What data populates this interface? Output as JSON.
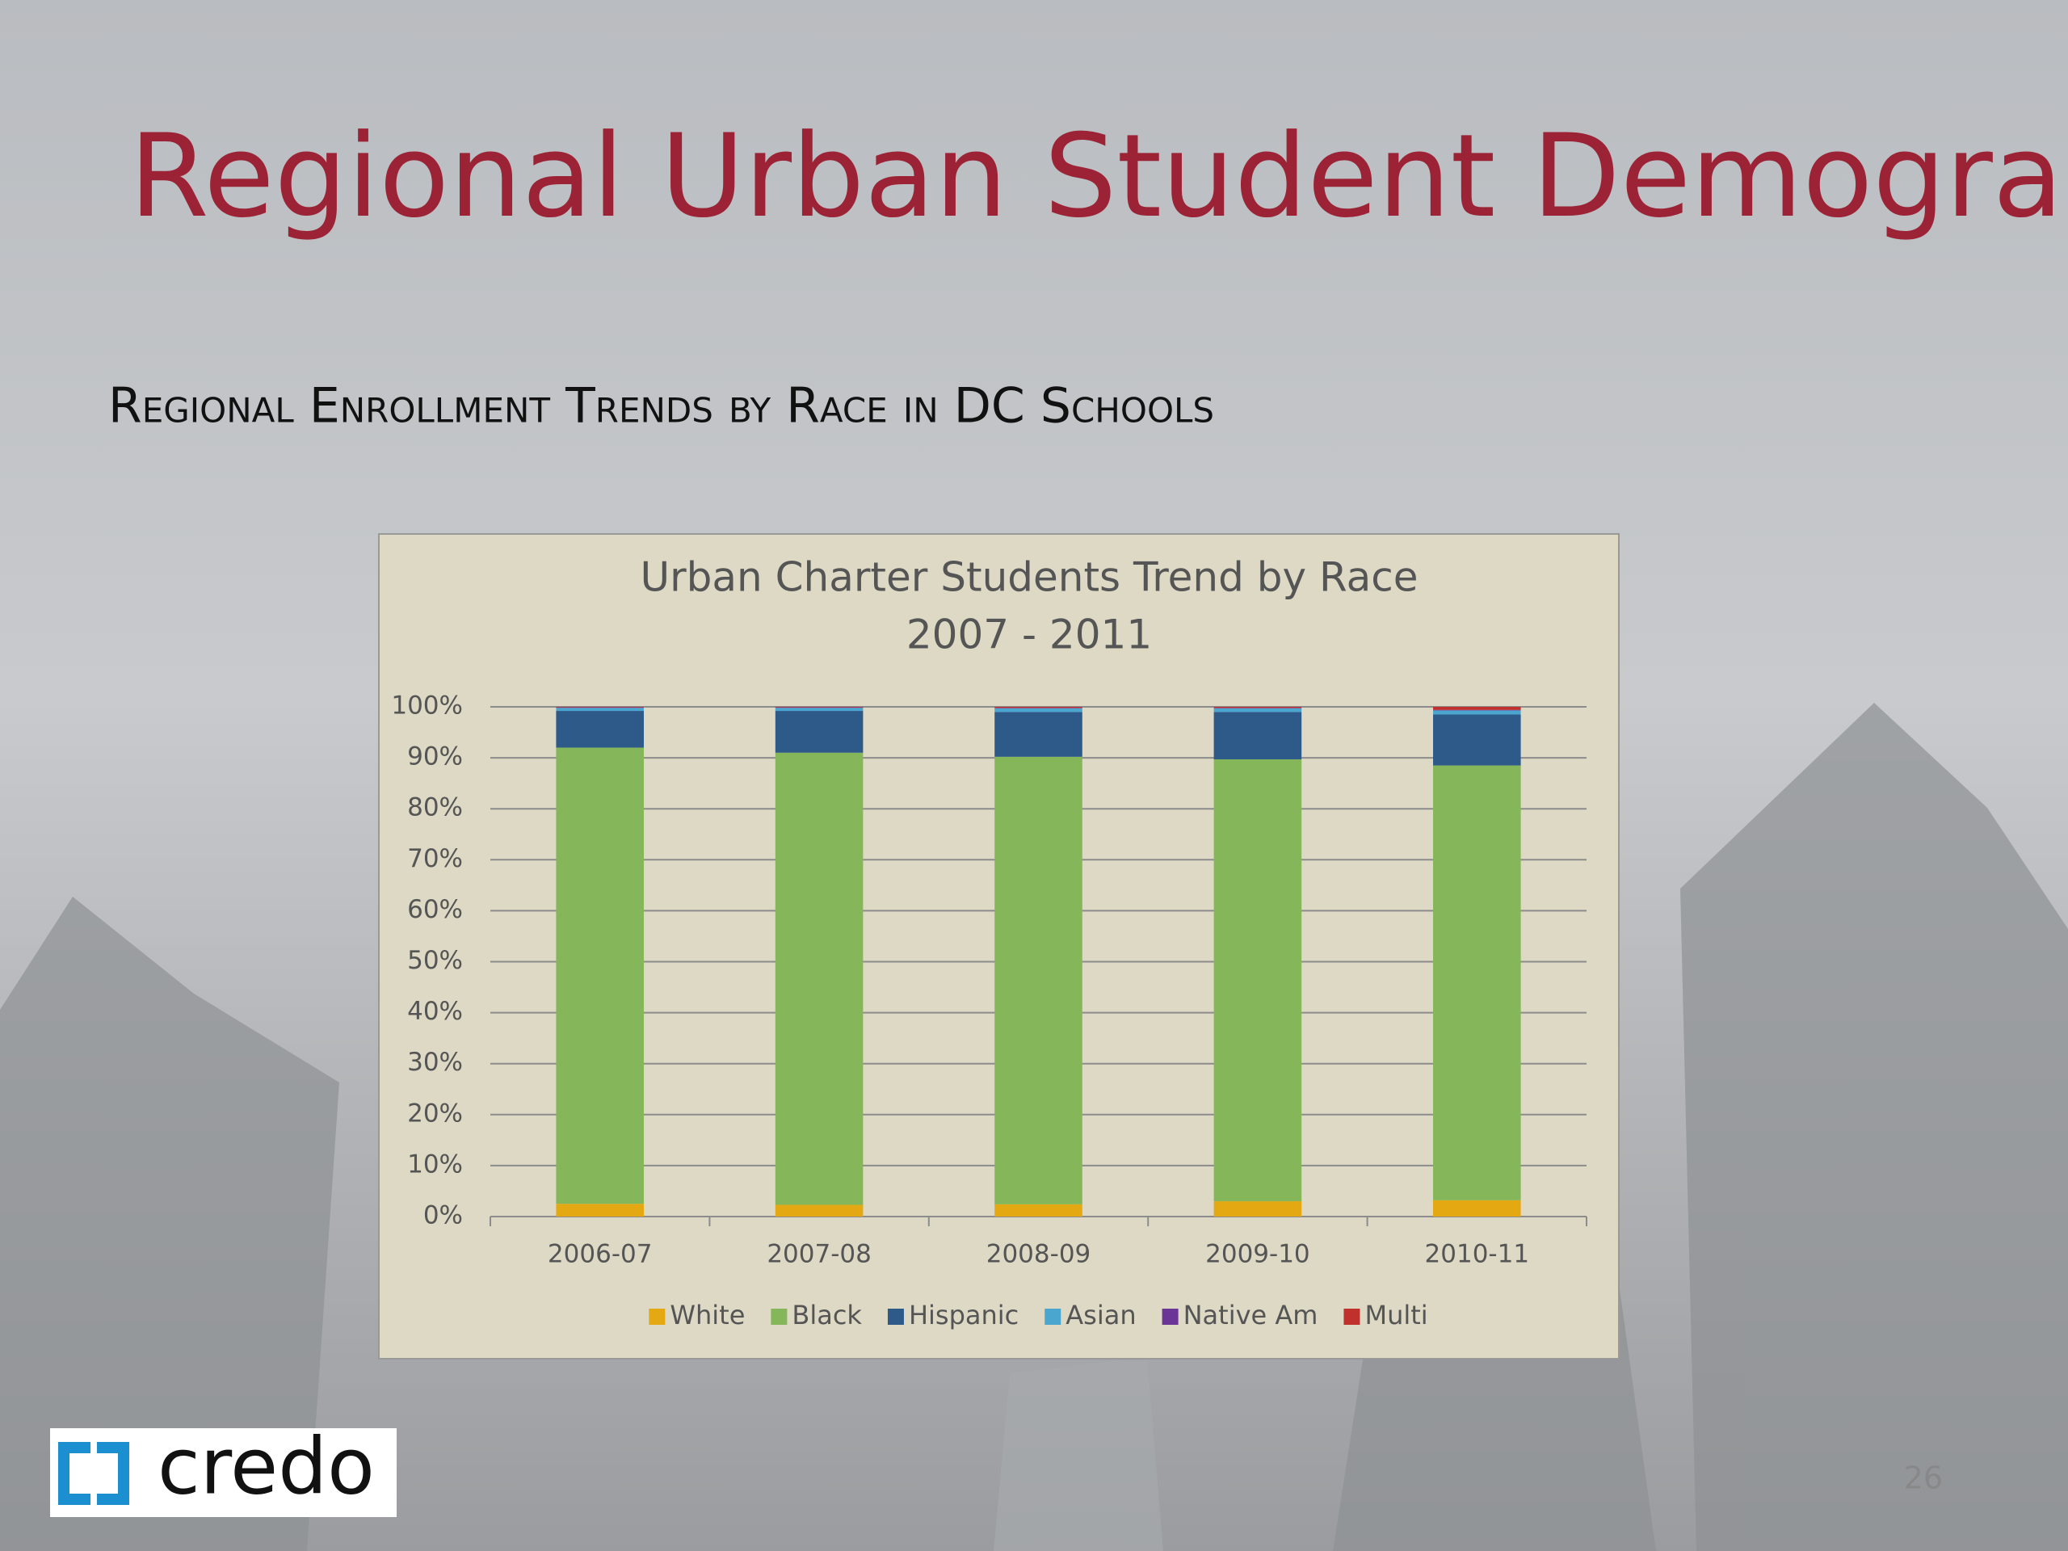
{
  "slide": {
    "title": "Regional Urban Student Demographics",
    "subtitle": "Regional Enrollment Trends by Race in DC Schools",
    "logo": "credo",
    "page_number": "26"
  },
  "chart_data": {
    "type": "stacked_bar",
    "title": "Urban Charter Students Trend by Race",
    "subtitle": "2007 - 2011",
    "categories": [
      "2006-07",
      "2007-08",
      "2008-09",
      "2009-10",
      "2010-11"
    ],
    "series": [
      {
        "name": "White",
        "color": "#e3a812",
        "values": [
          2.5,
          2.3,
          2.4,
          3.0,
          3.2
        ]
      },
      {
        "name": "Black",
        "color": "#86b65a",
        "values": [
          89.5,
          88.7,
          87.8,
          86.7,
          85.3
        ]
      },
      {
        "name": "Hispanic",
        "color": "#2e5a8a",
        "values": [
          7.2,
          8.2,
          8.8,
          9.3,
          10.0
        ]
      },
      {
        "name": "Asian",
        "color": "#4aa6cf",
        "values": [
          0.6,
          0.6,
          0.7,
          0.7,
          0.8
        ]
      },
      {
        "name": "Native Am",
        "color": "#6a3596",
        "values": [
          0.1,
          0.1,
          0.1,
          0.1,
          0.1
        ]
      },
      {
        "name": "Multi",
        "color": "#c0302c",
        "values": [
          0.1,
          0.1,
          0.2,
          0.2,
          0.6
        ]
      }
    ],
    "ylim": [
      0,
      100
    ],
    "yticks": [
      {
        "value": 0,
        "label": "0%"
      },
      {
        "value": 10,
        "label": "10%"
      },
      {
        "value": 20,
        "label": "20%"
      },
      {
        "value": 30,
        "label": "30%"
      },
      {
        "value": 40,
        "label": "40%"
      },
      {
        "value": 50,
        "label": "50%"
      },
      {
        "value": 60,
        "label": "60%"
      },
      {
        "value": 70,
        "label": "70%"
      },
      {
        "value": 80,
        "label": "80%"
      },
      {
        "value": 90,
        "label": "90%"
      },
      {
        "value": 100,
        "label": "100%"
      }
    ],
    "grid": true,
    "legend": "bottom"
  }
}
